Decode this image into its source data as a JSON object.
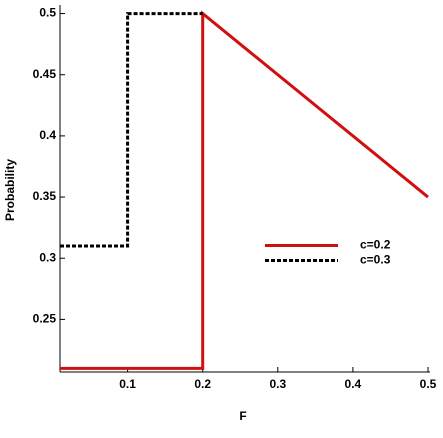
{
  "chart_data": {
    "type": "line",
    "xlabel": "F",
    "ylabel": "Probability",
    "xlim": [
      0.01,
      0.5
    ],
    "ylim": [
      0.207,
      0.507
    ],
    "xticks": [
      0.1,
      0.2,
      0.3,
      0.4,
      0.5
    ],
    "yticks": [
      0.25,
      0.3,
      0.35,
      0.4,
      0.45,
      0.5
    ],
    "legend": "right",
    "series": [
      {
        "name": "c=0.2",
        "color": "#d01010",
        "style": "solid",
        "x": [
          0.01,
          0.2,
          0.2,
          0.5
        ],
        "values": [
          0.21,
          0.21,
          0.5,
          0.35
        ]
      },
      {
        "name": "c=0.3",
        "color": "#000000",
        "style": "dashed",
        "x": [
          0.01,
          0.1,
          0.1,
          0.2
        ],
        "values": [
          0.31,
          0.31,
          0.5,
          0.5
        ]
      }
    ]
  }
}
